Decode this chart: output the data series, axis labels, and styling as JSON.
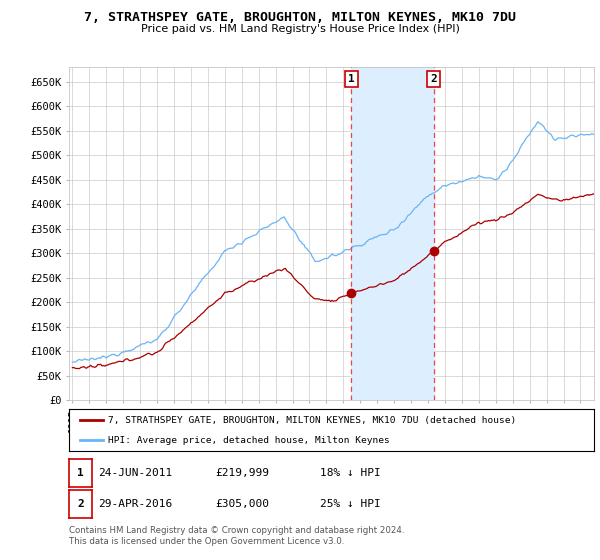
{
  "title": "7, STRATHSPEY GATE, BROUGHTON, MILTON KEYNES, MK10 7DU",
  "subtitle": "Price paid vs. HM Land Registry's House Price Index (HPI)",
  "legend_line1": "7, STRATHSPEY GATE, BROUGHTON, MILTON KEYNES, MK10 7DU (detached house)",
  "legend_line2": "HPI: Average price, detached house, Milton Keynes",
  "annotation1_date": "24-JUN-2011",
  "annotation1_price": "£219,999",
  "annotation1_hpi": "18% ↓ HPI",
  "annotation2_date": "29-APR-2016",
  "annotation2_price": "£305,000",
  "annotation2_hpi": "25% ↓ HPI",
  "footer": "Contains HM Land Registry data © Crown copyright and database right 2024.\nThis data is licensed under the Open Government Licence v3.0.",
  "sale1_year": 2011.48,
  "sale1_price": 219999,
  "sale2_year": 2016.33,
  "sale2_price": 305000,
  "hpi_color": "#6ab4f5",
  "sale_color": "#aa0000",
  "vline_color": "#ee4444",
  "shade_color": "#ddeeff",
  "background_color": "#ffffff",
  "grid_color": "#cccccc",
  "ylim_min": 0,
  "ylim_max": 680000,
  "xlim_min": 1994.8,
  "xlim_max": 2025.8
}
